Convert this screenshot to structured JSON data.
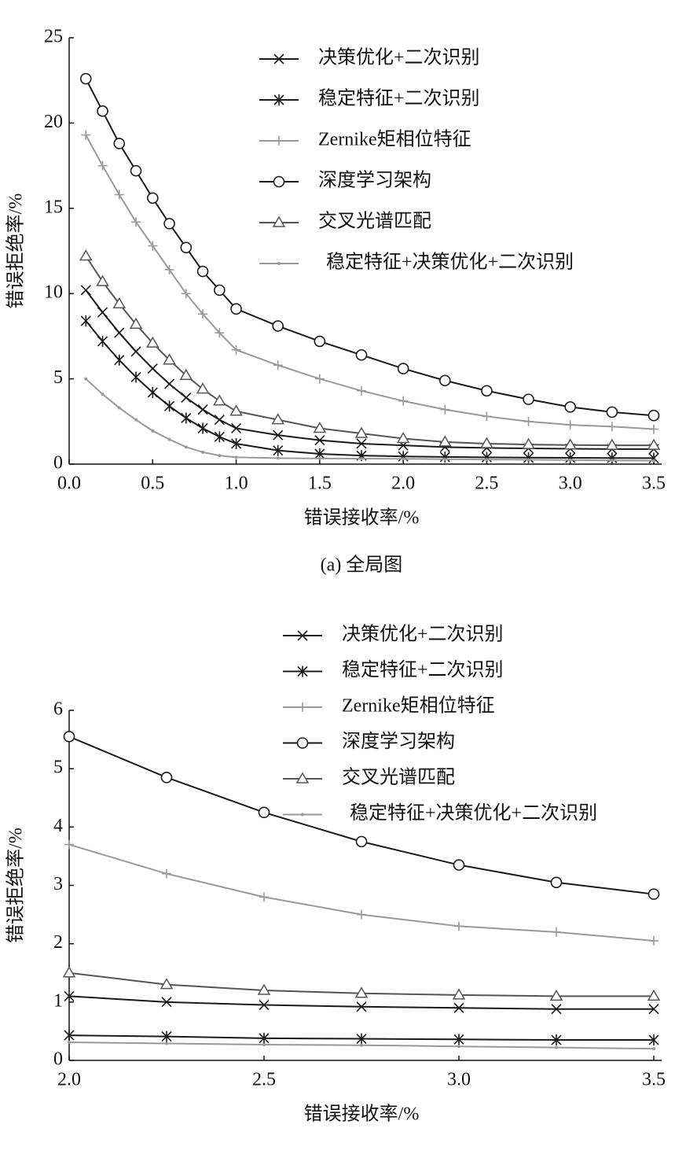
{
  "chart_data": [
    {
      "type": "line",
      "caption": "(a) 全局图",
      "x_label": "错误接收率/%",
      "y_label": "错误拒绝率/%",
      "x": [
        0.1,
        0.2,
        0.3,
        0.4,
        0.5,
        0.6,
        0.7,
        0.8,
        0.9,
        1.0,
        1.25,
        1.5,
        1.75,
        2.0,
        2.25,
        2.5,
        2.75,
        3.0,
        3.25,
        3.5
      ],
      "xlim": [
        0,
        3.5
      ],
      "xticks": [
        {
          "value": 0,
          "label": "0.0"
        },
        0.5,
        {
          "value": 1,
          "label": "1.0"
        },
        1.5,
        {
          "value": 2,
          "label": "2.0"
        },
        2.5,
        {
          "value": 3,
          "label": "3.0"
        },
        3.5
      ],
      "ylim": [
        0,
        25
      ],
      "yticks": [
        0,
        5,
        10,
        15,
        20,
        25
      ],
      "series": [
        {
          "name": "决策优化+二次识别",
          "marker": "x",
          "color": "#1a1a1a",
          "values": [
            10.2,
            8.9,
            7.7,
            6.6,
            5.6,
            4.7,
            3.9,
            3.2,
            2.6,
            2.1,
            1.7,
            1.4,
            1.2,
            1.1,
            1.0,
            0.95,
            0.92,
            0.9,
            0.88,
            0.88
          ]
        },
        {
          "name": "稳定特征+二次识别",
          "marker": "asterisk",
          "color": "#1a1a1a",
          "values": [
            8.4,
            7.2,
            6.1,
            5.1,
            4.2,
            3.4,
            2.7,
            2.1,
            1.6,
            1.2,
            0.8,
            0.6,
            0.5,
            0.45,
            0.42,
            0.4,
            0.38,
            0.37,
            0.36,
            0.35
          ]
        },
        {
          "name": "Zernike矩相位特征",
          "marker": "plus",
          "color": "#999999",
          "values": [
            19.3,
            17.5,
            15.8,
            14.2,
            12.8,
            11.4,
            10.0,
            8.8,
            7.7,
            6.7,
            5.8,
            5.0,
            4.3,
            3.7,
            3.2,
            2.8,
            2.5,
            2.3,
            2.2,
            2.05
          ]
        },
        {
          "name": "深度学习架构",
          "marker": "circle",
          "color": "#1a1a1a",
          "values": [
            22.6,
            20.7,
            18.8,
            17.2,
            15.6,
            14.1,
            12.7,
            11.3,
            10.2,
            9.1,
            8.1,
            7.2,
            6.4,
            5.6,
            4.9,
            4.3,
            3.8,
            3.35,
            3.05,
            2.85
          ]
        },
        {
          "name": "交叉光谱匹配",
          "marker": "triangle",
          "color": "#555555",
          "values": [
            12.2,
            10.7,
            9.4,
            8.2,
            7.1,
            6.1,
            5.2,
            4.4,
            3.7,
            3.1,
            2.6,
            2.1,
            1.8,
            1.5,
            1.3,
            1.2,
            1.15,
            1.12,
            1.1,
            1.1
          ]
        },
        {
          "name": "稳定特征+决策优化+二次识别",
          "marker": "dot",
          "color": "#999999",
          "values": [
            5.0,
            4.1,
            3.3,
            2.6,
            1.95,
            1.45,
            1.0,
            0.7,
            0.5,
            0.4,
            0.35,
            0.33,
            0.32,
            0.31,
            0.29,
            0.27,
            0.26,
            0.24,
            0.22,
            0.2
          ]
        }
      ]
    },
    {
      "type": "line",
      "x_label": "错误接收率/%",
      "y_label": "错误拒绝率/%",
      "x": [
        2.0,
        2.25,
        2.5,
        2.75,
        3.0,
        3.25,
        3.5
      ],
      "xlim": [
        2,
        3.5
      ],
      "xticks": [
        {
          "value": 2,
          "label": "2.0"
        },
        2.5,
        {
          "value": 3,
          "label": "3.0"
        },
        3.5
      ],
      "ylim": [
        0,
        6
      ],
      "yticks": [
        0,
        1,
        2,
        3,
        4,
        5,
        6
      ],
      "series": [
        {
          "name": "决策优化+二次识别",
          "marker": "x",
          "color": "#1a1a1a",
          "values": [
            1.1,
            1.0,
            0.95,
            0.92,
            0.9,
            0.88,
            0.88
          ]
        },
        {
          "name": "稳定特征+二次识别",
          "marker": "asterisk",
          "color": "#1a1a1a",
          "values": [
            0.43,
            0.41,
            0.38,
            0.37,
            0.36,
            0.35,
            0.35
          ]
        },
        {
          "name": "Zernike矩相位特征",
          "marker": "plus",
          "color": "#999999",
          "values": [
            3.7,
            3.2,
            2.8,
            2.5,
            2.3,
            2.2,
            2.05
          ]
        },
        {
          "name": "深度学习架构",
          "marker": "circle",
          "color": "#1a1a1a",
          "values": [
            5.55,
            4.85,
            4.25,
            3.75,
            3.35,
            3.05,
            2.85
          ]
        },
        {
          "name": "交叉光谱匹配",
          "marker": "triangle",
          "color": "#555555",
          "values": [
            1.5,
            1.3,
            1.2,
            1.15,
            1.12,
            1.1,
            1.1
          ]
        },
        {
          "name": "稳定特征+决策优化+二次识别",
          "marker": "dot",
          "color": "#999999",
          "values": [
            0.31,
            0.29,
            0.27,
            0.26,
            0.24,
            0.22,
            0.2
          ]
        }
      ]
    }
  ]
}
